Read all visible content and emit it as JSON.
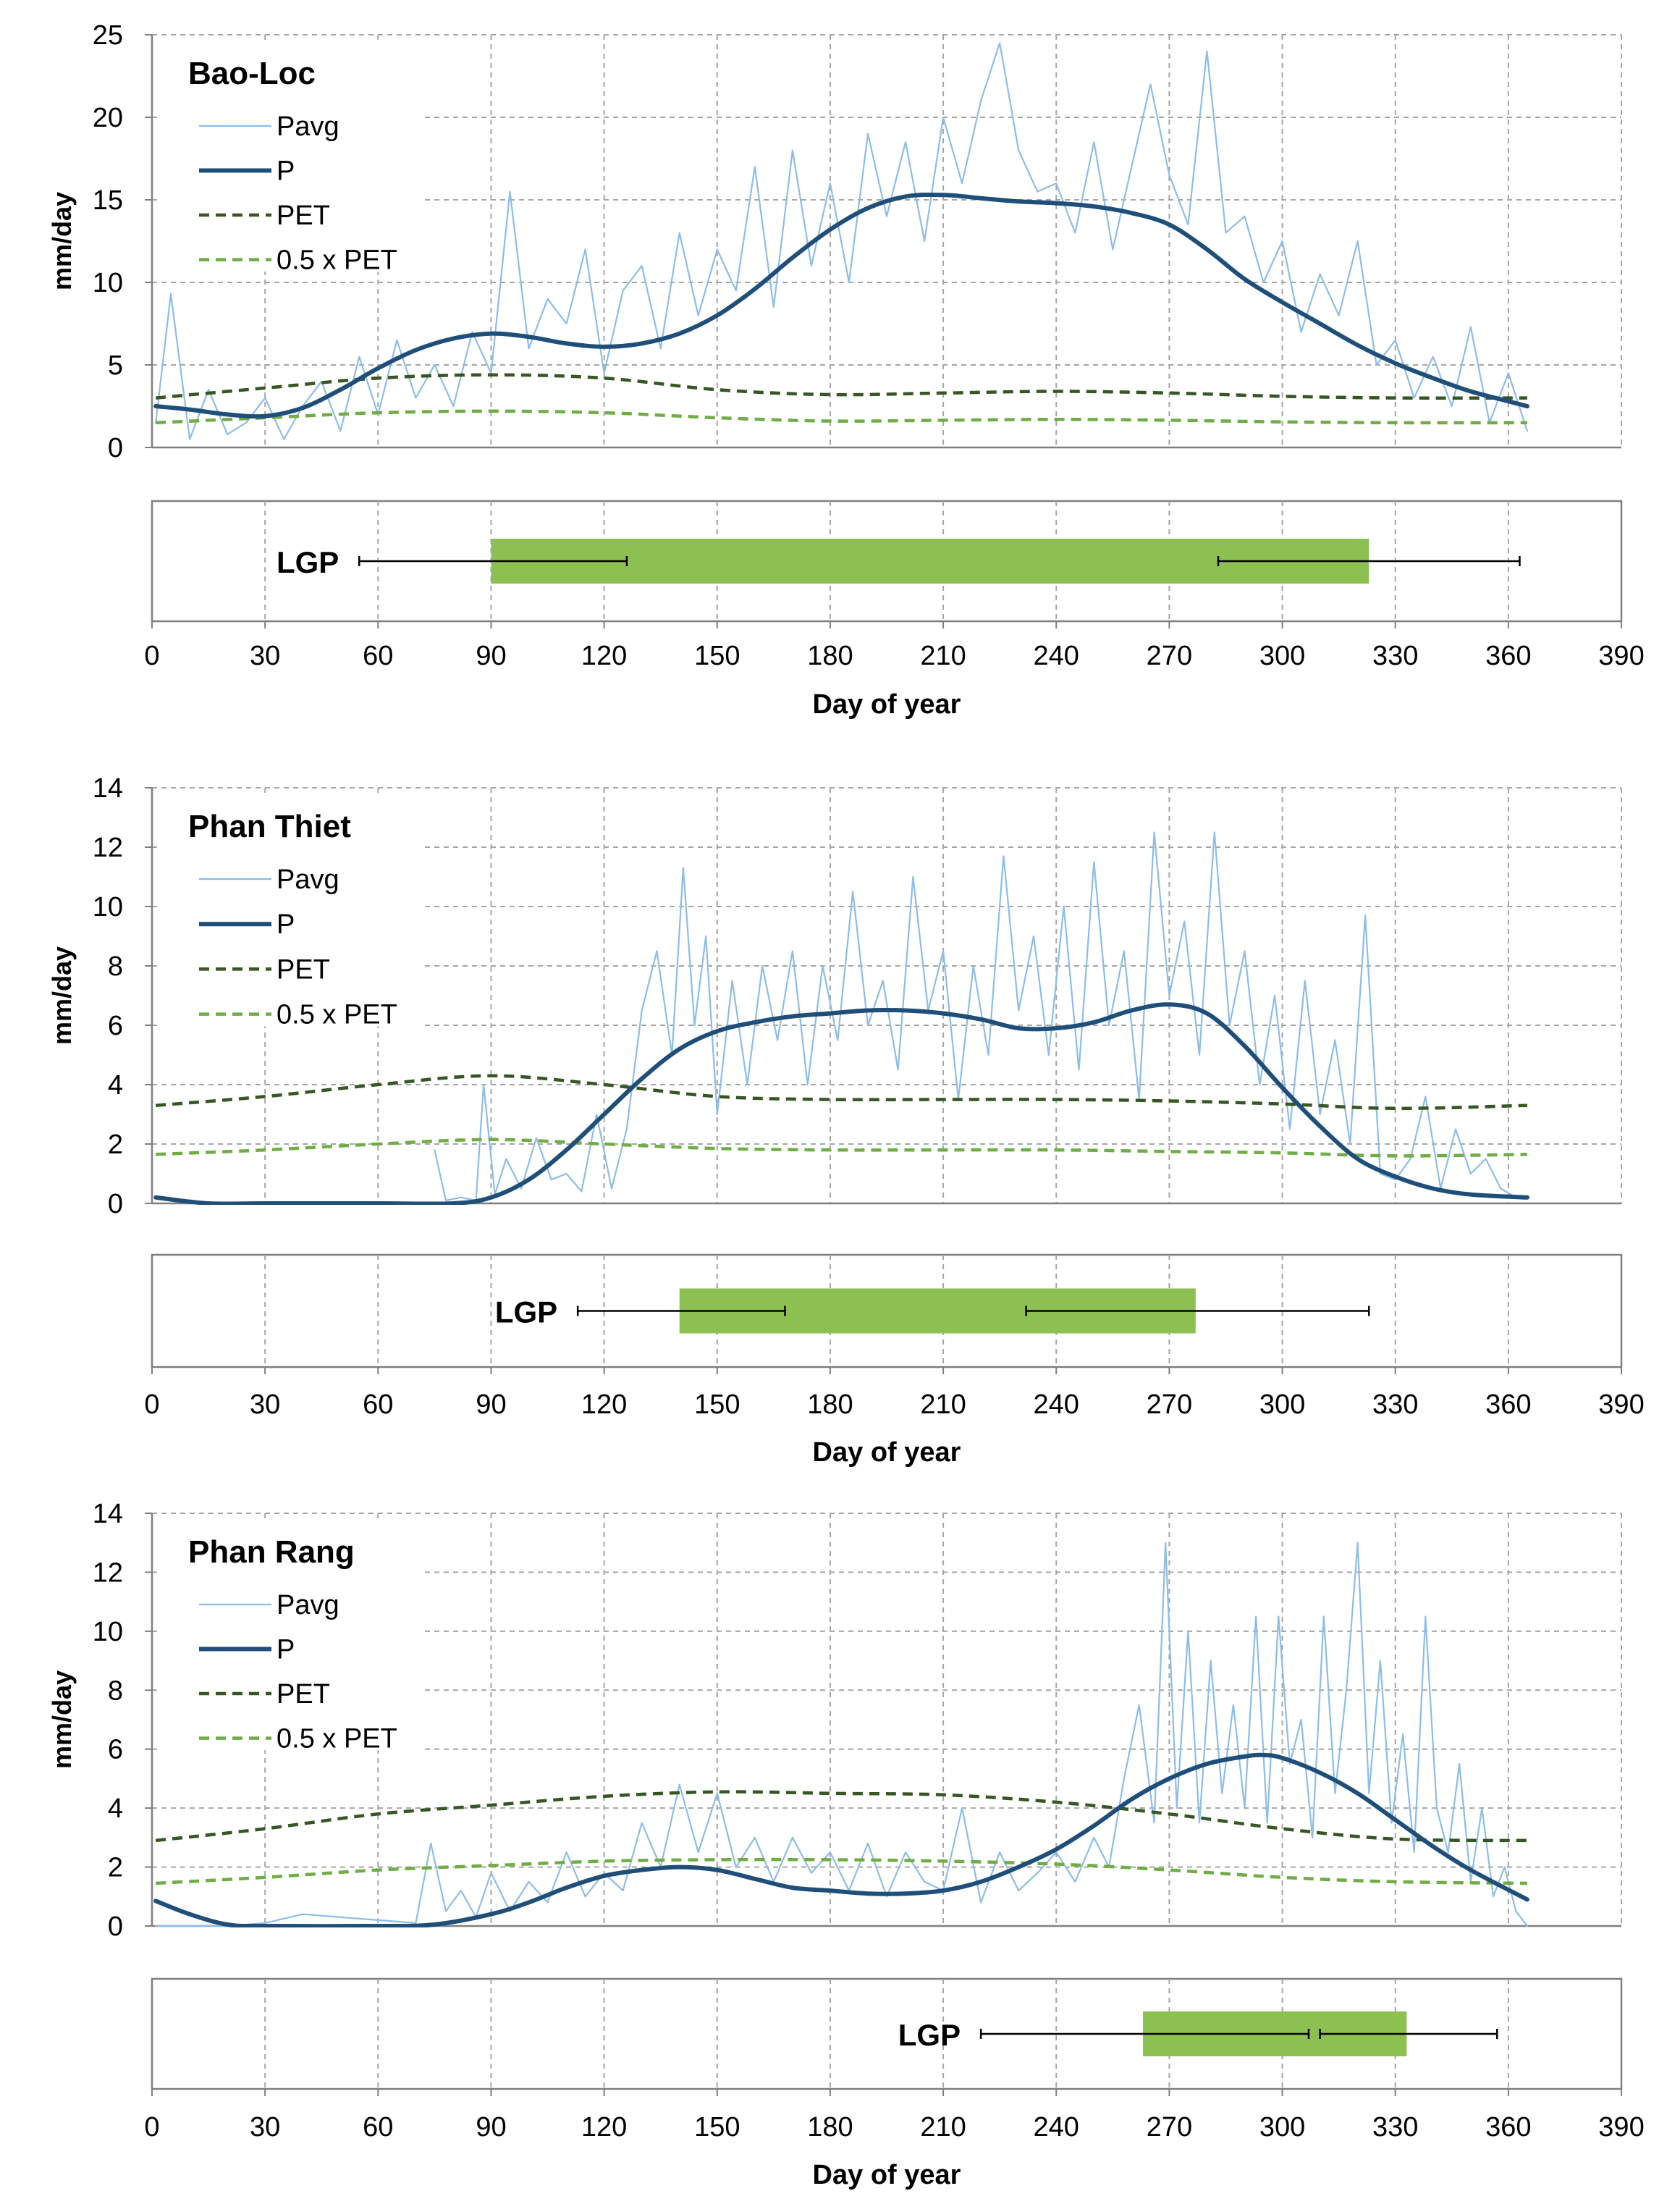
{
  "x_axis": {
    "label": "Day of year",
    "range": [
      0,
      390
    ],
    "ticks": [
      0,
      30,
      60,
      90,
      120,
      150,
      180,
      210,
      240,
      270,
      300,
      330,
      360,
      390
    ]
  },
  "y_label": "mm/day",
  "legend": {
    "pavg": "Pavg",
    "p": "P",
    "pet": "PET",
    "half_pet": "0.5 x PET"
  },
  "lgp_label": "LGP",
  "colors": {
    "pavg": "#8dbde8",
    "p": "#1f4e79",
    "pet": "#375623",
    "half_pet": "#70ad47",
    "lgp_bar": "#8cc152",
    "grid": "#a6a6a6",
    "axis": "#7f7f7f"
  },
  "chart_data": [
    {
      "type": "line",
      "title": "Bao-Loc",
      "xlabel": "Day of year",
      "ylabel": "mm/day",
      "xlim": [
        0,
        390
      ],
      "ylim": [
        0,
        25
      ],
      "yticks": [
        0,
        5,
        10,
        15,
        20,
        25
      ],
      "grid": true,
      "legend_position": "top-left",
      "series": [
        {
          "name": "P",
          "style": "solid-thick",
          "x": [
            1,
            10,
            20,
            30,
            40,
            50,
            60,
            70,
            80,
            90,
            100,
            110,
            120,
            130,
            140,
            150,
            160,
            170,
            180,
            190,
            200,
            210,
            220,
            230,
            240,
            250,
            260,
            270,
            280,
            290,
            300,
            310,
            320,
            330,
            340,
            350,
            360,
            365
          ],
          "y": [
            2.5,
            2.3,
            2.0,
            1.9,
            2.4,
            3.5,
            4.8,
            5.9,
            6.6,
            6.9,
            6.7,
            6.3,
            6.1,
            6.3,
            6.9,
            8.0,
            9.6,
            11.5,
            13.2,
            14.5,
            15.2,
            15.3,
            15.1,
            14.9,
            14.8,
            14.6,
            14.2,
            13.5,
            12.0,
            10.2,
            8.8,
            7.5,
            6.2,
            5.1,
            4.2,
            3.4,
            2.8,
            2.5
          ]
        },
        {
          "name": "PET",
          "style": "dashed-dark",
          "x": [
            1,
            30,
            60,
            90,
            120,
            150,
            180,
            210,
            240,
            270,
            300,
            330,
            365
          ],
          "y": [
            3.0,
            3.6,
            4.2,
            4.4,
            4.2,
            3.5,
            3.2,
            3.3,
            3.4,
            3.3,
            3.1,
            3.0,
            3.0
          ]
        },
        {
          "name": "0.5 x PET",
          "style": "dashed-light",
          "x": [
            1,
            30,
            60,
            90,
            120,
            150,
            180,
            210,
            240,
            270,
            300,
            330,
            365
          ],
          "y": [
            1.5,
            1.8,
            2.1,
            2.2,
            2.1,
            1.8,
            1.6,
            1.65,
            1.7,
            1.65,
            1.55,
            1.5,
            1.5
          ]
        },
        {
          "name": "Pavg",
          "style": "thin-light",
          "x": [
            1,
            5,
            10,
            15,
            20,
            25,
            30,
            35,
            40,
            45,
            50,
            55,
            60,
            65,
            70,
            75,
            80,
            85,
            90,
            95,
            100,
            105,
            110,
            115,
            120,
            125,
            130,
            135,
            140,
            145,
            150,
            155,
            160,
            165,
            170,
            175,
            180,
            185,
            190,
            195,
            200,
            205,
            210,
            215,
            220,
            225,
            230,
            235,
            240,
            245,
            250,
            255,
            260,
            265,
            270,
            275,
            280,
            285,
            290,
            295,
            300,
            305,
            310,
            315,
            320,
            325,
            330,
            335,
            340,
            345,
            350,
            355,
            360,
            365
          ],
          "y": [
            1.5,
            9.3,
            0.5,
            3.5,
            0.8,
            1.5,
            3.0,
            0.5,
            2.5,
            4.0,
            1.0,
            5.5,
            2.0,
            6.5,
            3.0,
            5.0,
            2.5,
            7.0,
            4.5,
            15.5,
            6.0,
            9.0,
            7.5,
            12.0,
            4.5,
            9.5,
            11.0,
            6.0,
            13.0,
            8.0,
            12.0,
            9.5,
            17.0,
            8.5,
            18.0,
            11.0,
            16.0,
            10.0,
            19.0,
            14.0,
            18.5,
            12.5,
            20.0,
            16.0,
            21.0,
            24.5,
            18.0,
            15.5,
            16.0,
            13.0,
            18.5,
            12.0,
            17.0,
            22.0,
            16.5,
            13.5,
            24.0,
            13.0,
            14.0,
            10.0,
            12.5,
            7.0,
            10.5,
            8.0,
            12.5,
            5.0,
            6.5,
            3.0,
            5.5,
            2.5,
            7.3,
            1.5,
            4.5,
            1.0
          ]
        }
      ],
      "lgp": {
        "start": 90,
        "end": 323,
        "start_range": [
          55,
          126
        ],
        "end_range": [
          283,
          363
        ]
      }
    },
    {
      "type": "line",
      "title": "Phan Thiet",
      "xlabel": "Day of year",
      "ylabel": "mm/day",
      "xlim": [
        0,
        390
      ],
      "ylim": [
        0,
        14
      ],
      "yticks": [
        0,
        2,
        4,
        6,
        8,
        10,
        12,
        14
      ],
      "grid": true,
      "legend_position": "top-left",
      "series": [
        {
          "name": "P",
          "style": "solid-thick",
          "x": [
            1,
            15,
            30,
            60,
            80,
            90,
            100,
            110,
            120,
            130,
            140,
            150,
            160,
            170,
            180,
            190,
            200,
            210,
            220,
            230,
            240,
            250,
            260,
            270,
            280,
            290,
            300,
            310,
            320,
            330,
            340,
            350,
            365
          ],
          "y": [
            0.2,
            0.0,
            0.0,
            0.0,
            0.0,
            0.2,
            0.8,
            1.8,
            3.0,
            4.2,
            5.2,
            5.8,
            6.1,
            6.3,
            6.4,
            6.5,
            6.5,
            6.4,
            6.2,
            5.9,
            5.9,
            6.1,
            6.5,
            6.7,
            6.4,
            5.3,
            3.9,
            2.6,
            1.5,
            0.9,
            0.5,
            0.3,
            0.2
          ]
        },
        {
          "name": "PET",
          "style": "dashed-dark",
          "x": [
            1,
            30,
            60,
            90,
            120,
            150,
            180,
            210,
            240,
            270,
            300,
            330,
            365
          ],
          "y": [
            3.3,
            3.6,
            4.0,
            4.3,
            4.0,
            3.6,
            3.5,
            3.5,
            3.5,
            3.45,
            3.35,
            3.2,
            3.3
          ]
        },
        {
          "name": "0.5 x PET",
          "style": "dashed-light",
          "x": [
            1,
            30,
            60,
            90,
            120,
            150,
            180,
            210,
            240,
            270,
            300,
            330,
            365
          ],
          "y": [
            1.65,
            1.8,
            2.0,
            2.15,
            2.0,
            1.85,
            1.8,
            1.8,
            1.8,
            1.75,
            1.7,
            1.6,
            1.65
          ]
        },
        {
          "name": "Pavg",
          "style": "thin-light",
          "x": [
            75,
            78,
            82,
            86,
            88,
            91,
            94,
            98,
            102,
            106,
            110,
            114,
            118,
            122,
            126,
            130,
            134,
            138,
            141,
            144,
            147,
            150,
            154,
            158,
            162,
            166,
            170,
            174,
            178,
            182,
            186,
            190,
            194,
            198,
            202,
            206,
            210,
            214,
            218,
            222,
            226,
            230,
            234,
            238,
            242,
            246,
            250,
            254,
            258,
            262,
            266,
            270,
            274,
            278,
            282,
            286,
            290,
            294,
            298,
            302,
            306,
            310,
            314,
            318,
            322,
            326,
            330,
            334,
            338,
            342,
            346,
            350,
            354,
            358,
            362
          ],
          "y": [
            1.8,
            0.1,
            0.2,
            0.1,
            4.0,
            0.3,
            1.5,
            0.5,
            2.2,
            0.8,
            1.0,
            0.4,
            3.0,
            0.5,
            2.5,
            6.5,
            8.5,
            5.0,
            11.3,
            6.0,
            9.0,
            3.0,
            7.5,
            4.0,
            8.0,
            5.5,
            8.5,
            4.0,
            8.0,
            5.5,
            10.5,
            6.0,
            7.5,
            4.5,
            11.0,
            6.5,
            8.5,
            3.5,
            8.0,
            5.0,
            11.7,
            6.5,
            9.0,
            5.0,
            10.0,
            4.5,
            11.5,
            6.0,
            8.5,
            3.5,
            12.5,
            7.0,
            9.5,
            5.0,
            12.5,
            6.0,
            8.5,
            4.0,
            7.0,
            2.5,
            7.5,
            3.0,
            5.5,
            2.0,
            9.7,
            1.0,
            0.8,
            1.5,
            3.6,
            0.5,
            2.5,
            1.0,
            1.5,
            0.5,
            0.2
          ]
        }
      ],
      "lgp": {
        "start": 140,
        "end": 277,
        "start_range": [
          113,
          168
        ],
        "end_range": [
          232,
          323
        ]
      }
    },
    {
      "type": "line",
      "title": "Phan Rang",
      "xlabel": "Day of year",
      "ylabel": "mm/day",
      "xlim": [
        0,
        390
      ],
      "ylim": [
        0,
        14
      ],
      "yticks": [
        0,
        2,
        4,
        6,
        8,
        10,
        12,
        14
      ],
      "grid": true,
      "legend_position": "top-left",
      "series": [
        {
          "name": "P",
          "style": "solid-thick",
          "x": [
            1,
            10,
            20,
            30,
            60,
            75,
            90,
            100,
            110,
            120,
            130,
            140,
            150,
            160,
            170,
            180,
            190,
            200,
            210,
            220,
            230,
            240,
            250,
            260,
            270,
            280,
            290,
            295,
            300,
            310,
            320,
            330,
            340,
            350,
            365
          ],
          "y": [
            0.85,
            0.4,
            0.05,
            0.0,
            0.0,
            0.05,
            0.4,
            0.8,
            1.3,
            1.7,
            1.9,
            2.0,
            1.9,
            1.6,
            1.3,
            1.2,
            1.1,
            1.1,
            1.2,
            1.5,
            2.0,
            2.6,
            3.4,
            4.3,
            5.0,
            5.5,
            5.75,
            5.8,
            5.7,
            5.2,
            4.5,
            3.6,
            2.7,
            1.9,
            0.9
          ]
        },
        {
          "name": "PET",
          "style": "dashed-dark",
          "x": [
            1,
            30,
            60,
            90,
            120,
            150,
            180,
            210,
            240,
            270,
            300,
            330,
            365
          ],
          "y": [
            2.9,
            3.3,
            3.8,
            4.1,
            4.4,
            4.55,
            4.5,
            4.45,
            4.2,
            3.8,
            3.3,
            2.95,
            2.9
          ]
        },
        {
          "name": "0.5 x PET",
          "style": "dashed-light",
          "x": [
            1,
            30,
            60,
            90,
            120,
            150,
            180,
            210,
            240,
            270,
            300,
            330,
            365
          ],
          "y": [
            1.45,
            1.65,
            1.9,
            2.05,
            2.2,
            2.25,
            2.25,
            2.2,
            2.1,
            1.9,
            1.65,
            1.5,
            1.45
          ]
        },
        {
          "name": "Pavg",
          "style": "thin-light",
          "x": [
            1,
            10,
            20,
            30,
            40,
            60,
            70,
            74,
            78,
            82,
            86,
            90,
            95,
            100,
            105,
            110,
            115,
            120,
            125,
            130,
            135,
            140,
            145,
            150,
            155,
            160,
            165,
            170,
            175,
            180,
            185,
            190,
            195,
            200,
            205,
            210,
            215,
            220,
            225,
            230,
            235,
            240,
            245,
            250,
            254,
            258,
            262,
            266,
            269,
            272,
            275,
            278,
            281,
            284,
            287,
            290,
            293,
            296,
            299,
            302,
            305,
            308,
            311,
            314,
            317,
            320,
            323,
            326,
            329,
            332,
            335,
            338,
            341,
            344,
            347,
            350,
            353,
            356,
            359,
            362,
            365
          ],
          "y": [
            0.0,
            0.0,
            0.0,
            0.1,
            0.4,
            0.2,
            0.1,
            2.8,
            0.5,
            1.2,
            0.3,
            1.8,
            0.5,
            1.5,
            0.8,
            2.5,
            1.0,
            1.8,
            1.2,
            3.5,
            2.0,
            4.8,
            2.5,
            4.5,
            2.0,
            3.0,
            1.5,
            3.0,
            1.8,
            2.5,
            1.2,
            2.8,
            1.0,
            2.5,
            1.5,
            1.2,
            4.0,
            0.8,
            2.5,
            1.2,
            1.8,
            2.5,
            1.5,
            3.0,
            2.0,
            5.0,
            7.5,
            3.5,
            13.0,
            4.0,
            10.0,
            3.5,
            9.0,
            4.5,
            7.5,
            4.0,
            10.5,
            3.5,
            10.5,
            5.5,
            7.0,
            3.0,
            10.5,
            4.5,
            8.0,
            13.0,
            4.5,
            9.0,
            3.5,
            6.5,
            2.5,
            10.5,
            4.0,
            2.5,
            5.5,
            1.5,
            4.0,
            1.0,
            2.0,
            0.5,
            0.0
          ]
        }
      ],
      "lgp": {
        "start": 263,
        "end": 333,
        "start_range": [
          220,
          307
        ],
        "end_range": [
          310,
          357
        ]
      }
    }
  ]
}
